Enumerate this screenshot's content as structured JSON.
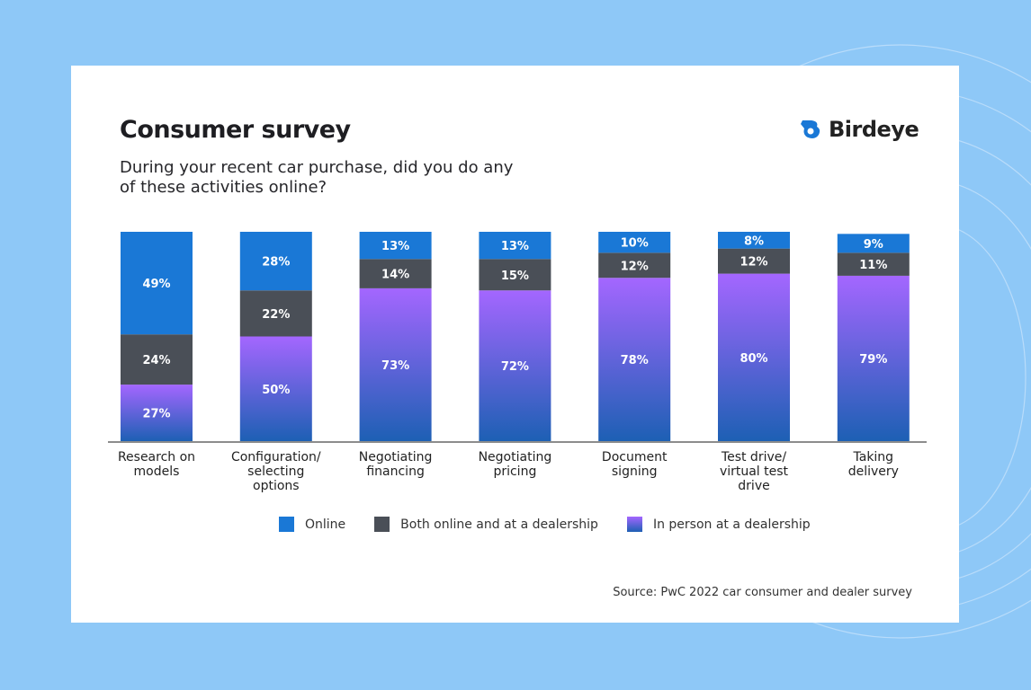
{
  "card": {
    "title": "Consumer survey",
    "subtitle": "During your recent car purchase, did you do any of these activities online?",
    "brand": "Birdeye",
    "source": "Source: PwC 2022 car consumer and dealer survey"
  },
  "chart_data": {
    "type": "bar",
    "stacked": true,
    "orientation": "vertical",
    "categories": [
      [
        "Research on",
        "models"
      ],
      [
        "Configuration/",
        "selecting",
        "options"
      ],
      [
        "Negotiating",
        "financing"
      ],
      [
        "Negotiating",
        "pricing"
      ],
      [
        "Document",
        "signing"
      ],
      [
        "Test drive/",
        "virtual test",
        "drive"
      ],
      [
        "Taking",
        "delivery"
      ]
    ],
    "series": [
      {
        "name": "In person at a dealership",
        "color": "#7b5cf0",
        "values": [
          27,
          50,
          73,
          72,
          78,
          80,
          79
        ]
      },
      {
        "name": "Both online and at a dealership",
        "color": "#4a4f57",
        "values": [
          24,
          22,
          14,
          15,
          12,
          12,
          11
        ]
      },
      {
        "name": "Online",
        "color": "#1a78d6",
        "values": [
          49,
          28,
          13,
          13,
          10,
          8,
          9
        ]
      }
    ],
    "ylim": [
      0,
      100
    ],
    "value_format": "percent",
    "grid": false,
    "legend_position": "bottom"
  }
}
